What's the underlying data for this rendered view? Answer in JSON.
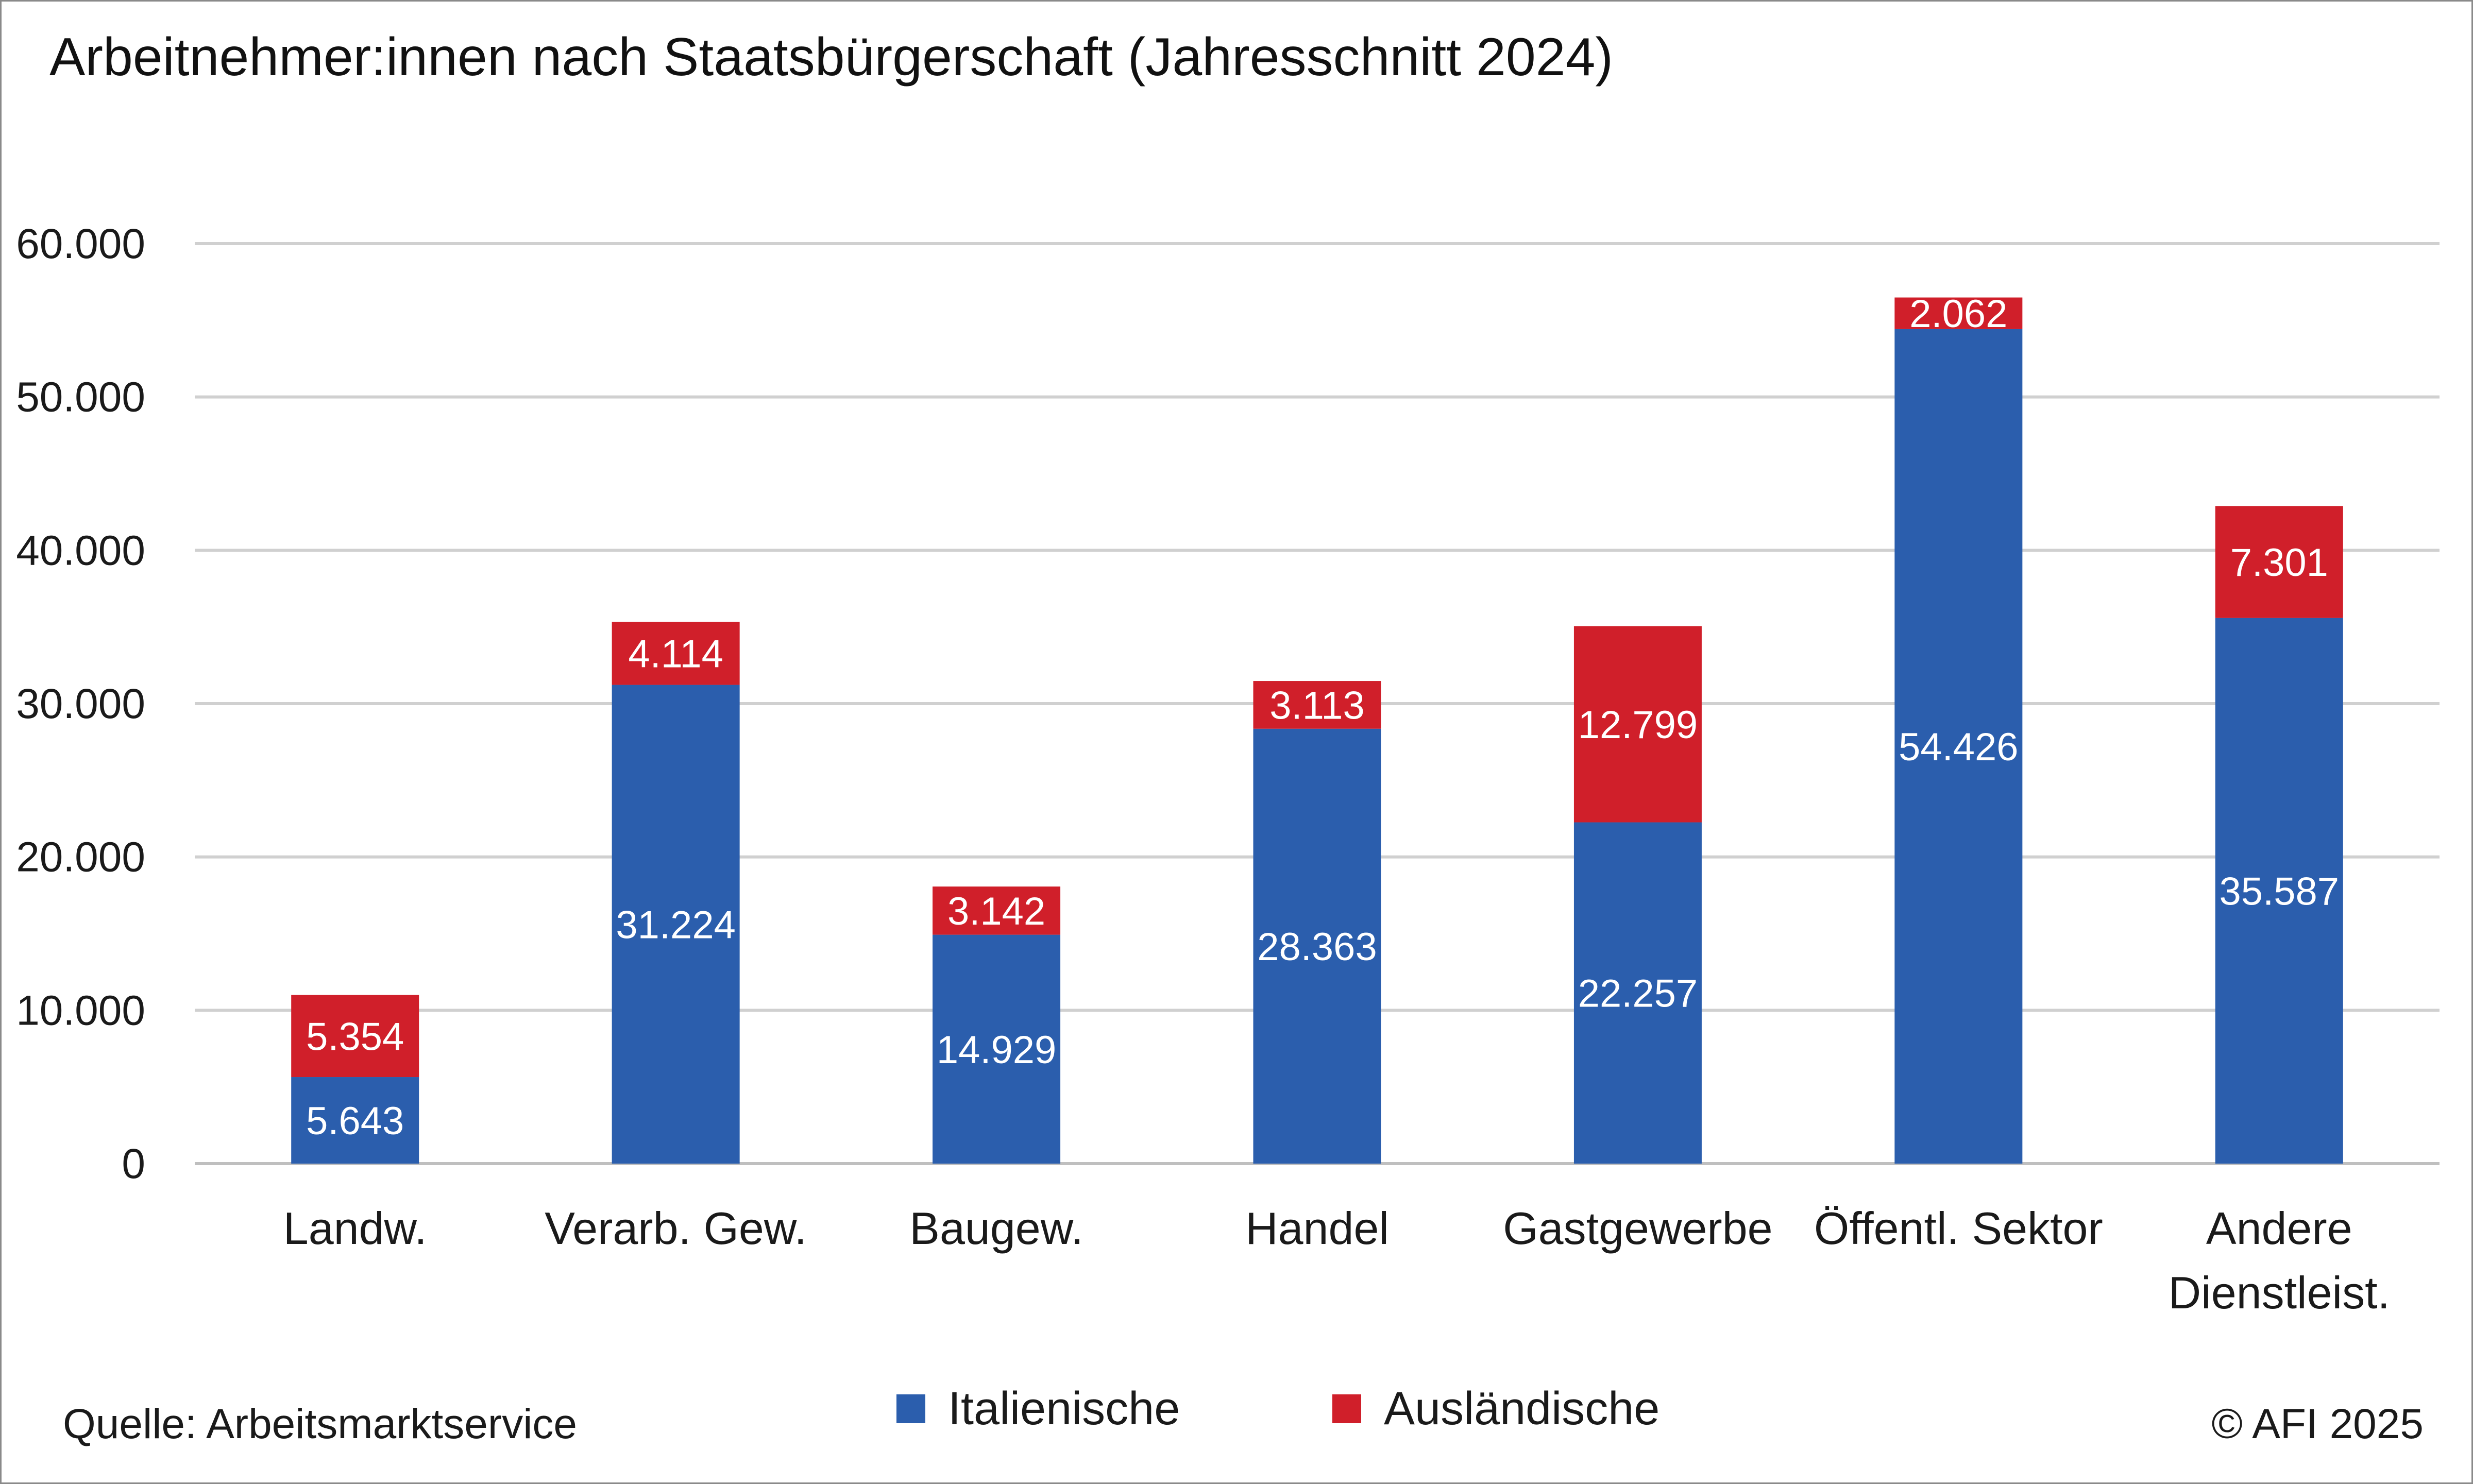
{
  "title": "Arbeitnehmer:innen nach Staatsbürgerschaft (Jahresschnitt 2024)",
  "source": "Quelle: Arbeitsmarktservice",
  "copyright": "© AFI 2025",
  "colors": {
    "italienische": "#2b5ead",
    "auslaendische": "#d01f2a",
    "grid": "#d0d0d0",
    "axis": "#bfbfbf"
  },
  "chart_data": {
    "type": "bar",
    "stacked": true,
    "categories": [
      "Landw.",
      "Verarb. Gew.",
      "Baugew.",
      "Handel",
      "Gastgewerbe",
      "Öffentl. Sektor",
      "Andere Dienstleist."
    ],
    "series": [
      {
        "name": "Italienische",
        "values": [
          5643,
          31224,
          14929,
          28363,
          22257,
          54426,
          35587
        ],
        "labels": [
          "5.643",
          "31.224",
          "14.929",
          "28.363",
          "22.257",
          "54.426",
          "35.587"
        ]
      },
      {
        "name": "Ausländische",
        "values": [
          5354,
          4114,
          3142,
          3113,
          12799,
          2062,
          7301
        ],
        "labels": [
          "5.354",
          "4.114",
          "3.142",
          "3.113",
          "12.799",
          "2.062",
          "7.301"
        ]
      }
    ],
    "ylim": [
      0,
      60000
    ],
    "yticks": [
      0,
      10000,
      20000,
      30000,
      40000,
      50000,
      60000
    ],
    "ytick_labels": [
      "0",
      "10.000",
      "20.000",
      "30.000",
      "40.000",
      "50.000",
      "60.000"
    ],
    "grid": true,
    "legend": "bottom-center"
  }
}
